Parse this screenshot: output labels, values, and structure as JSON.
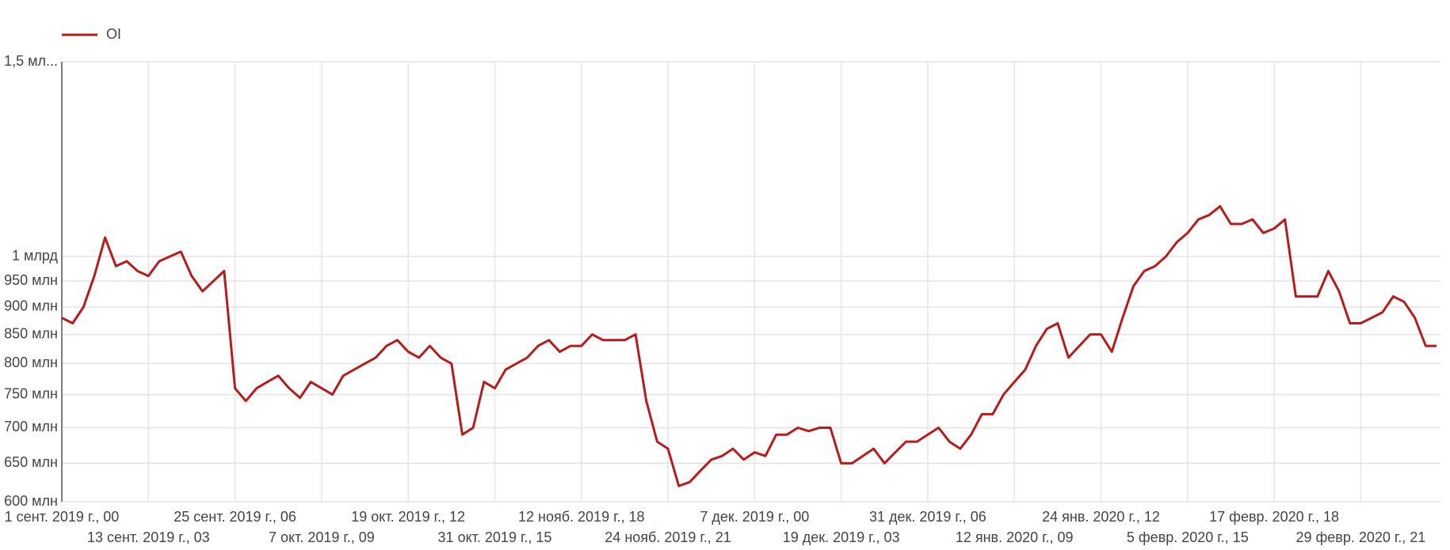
{
  "chart_data": {
    "type": "line",
    "log_y": true,
    "grid": true,
    "categories": [
      "1 сент. 2019 г., 00",
      null,
      null,
      null,
      null,
      null,
      null,
      null,
      "13 сент. 2019 г., 03",
      null,
      null,
      null,
      null,
      null,
      null,
      null,
      "25 сент. 2019 г., 06",
      null,
      null,
      null,
      null,
      null,
      null,
      null,
      "7 окт. 2019 г., 09",
      null,
      null,
      null,
      null,
      null,
      null,
      null,
      "19 окт. 2019 г., 12",
      null,
      null,
      null,
      null,
      null,
      null,
      null,
      "31 окт. 2019 г., 15",
      null,
      null,
      null,
      null,
      null,
      null,
      null,
      "12 нояб. 2019 г., 18",
      null,
      null,
      null,
      null,
      null,
      null,
      null,
      "24 нояб. 2019 г., 21",
      null,
      null,
      null,
      null,
      null,
      null,
      null,
      "7 дек. 2019 г., 00",
      null,
      null,
      null,
      null,
      null,
      null,
      null,
      "19 дек. 2019 г., 03",
      null,
      null,
      null,
      null,
      null,
      null,
      null,
      "31 дек. 2019 г., 06",
      null,
      null,
      null,
      null,
      null,
      null,
      null,
      "12 янв. 2020 г., 09",
      null,
      null,
      null,
      null,
      null,
      null,
      null,
      "24 янв. 2020 г., 12",
      null,
      null,
      null,
      null,
      null,
      null,
      null,
      "5 февр. 2020 г., 15",
      null,
      null,
      null,
      null,
      null,
      null,
      null,
      "17 февр. 2020 г., 18",
      null,
      null,
      null,
      null,
      null,
      null,
      null,
      "29 февр. 2020 г., 21",
      null,
      null,
      null,
      null,
      null,
      null,
      null
    ],
    "series": [
      {
        "name": "OI",
        "color": "#b71c1c",
        "values": [
          880000000,
          870000000,
          900000000,
          960000000,
          1040000000,
          980000000,
          990000000,
          970000000,
          960000000,
          990000000,
          1000000000,
          1010000000,
          960000000,
          930000000,
          950000000,
          970000000,
          760000000,
          740000000,
          760000000,
          770000000,
          780000000,
          760000000,
          745000000,
          770000000,
          760000000,
          750000000,
          780000000,
          790000000,
          800000000,
          810000000,
          830000000,
          840000000,
          820000000,
          810000000,
          830000000,
          810000000,
          800000000,
          690000000,
          700000000,
          770000000,
          760000000,
          790000000,
          800000000,
          810000000,
          830000000,
          840000000,
          820000000,
          830000000,
          830000000,
          850000000,
          840000000,
          840000000,
          840000000,
          850000000,
          740000000,
          680000000,
          670000000,
          620000000,
          625000000,
          640000000,
          655000000,
          660000000,
          670000000,
          655000000,
          665000000,
          660000000,
          690000000,
          690000000,
          700000000,
          695000000,
          700000000,
          700000000,
          650000000,
          650000000,
          660000000,
          670000000,
          650000000,
          665000000,
          680000000,
          680000000,
          690000000,
          700000000,
          680000000,
          670000000,
          690000000,
          720000000,
          720000000,
          750000000,
          770000000,
          790000000,
          830000000,
          860000000,
          870000000,
          810000000,
          830000000,
          850000000,
          850000000,
          820000000,
          880000000,
          940000000,
          970000000,
          980000000,
          1000000000,
          1030000000,
          1050000000,
          1080000000,
          1090000000,
          1110000000,
          1070000000,
          1070000000,
          1080000000,
          1050000000,
          1060000000,
          1080000000,
          920000000,
          920000000,
          920000000,
          970000000,
          930000000,
          870000000,
          870000000,
          880000000,
          890000000,
          920000000,
          910000000,
          880000000,
          830000000,
          830000000
        ]
      }
    ],
    "ylim": [
      600000000,
      1500000000
    ],
    "yticks": [
      {
        "value": 600000000,
        "label": "600 млн"
      },
      {
        "value": 650000000,
        "label": "650 млн"
      },
      {
        "value": 700000000,
        "label": "700 млн"
      },
      {
        "value": 750000000,
        "label": "750 млн"
      },
      {
        "value": 800000000,
        "label": "800 млн"
      },
      {
        "value": 850000000,
        "label": "850 млн"
      },
      {
        "value": 900000000,
        "label": "900 млн"
      },
      {
        "value": 950000000,
        "label": "950 млн"
      },
      {
        "value": 1000000000,
        "label": "1 млрд"
      },
      {
        "value": 1500000000,
        "label": "1,5 мл..."
      }
    ]
  }
}
